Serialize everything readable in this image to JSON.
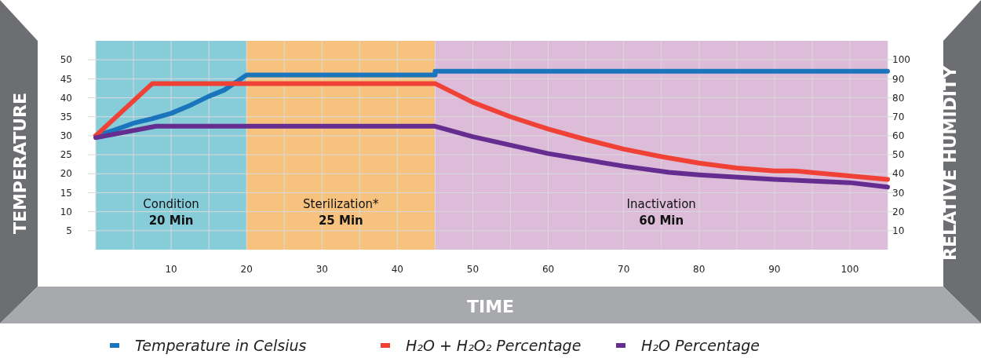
{
  "chart_data": {
    "type": "line",
    "xlabel": "TIME",
    "ylabel": "TEMPERATURE",
    "y2label": "RELATIVE HUMIDITY",
    "xlim": [
      0,
      105
    ],
    "xticks": [
      {
        "value": 0,
        "label": null
      },
      {
        "value": 5,
        "label": null
      },
      10,
      {
        "value": 15,
        "label": null
      },
      20,
      {
        "value": 25,
        "label": null
      },
      30,
      {
        "value": 35,
        "label": null
      },
      40,
      {
        "value": 45,
        "label": null
      },
      50,
      {
        "value": 55,
        "label": null
      },
      60,
      {
        "value": 65,
        "label": null
      },
      70,
      {
        "value": 75,
        "label": null
      },
      80,
      {
        "value": 85,
        "label": null
      },
      90,
      {
        "value": 95,
        "label": null
      },
      100,
      {
        "value": 105,
        "label": null
      }
    ],
    "ylim": [
      0,
      55
    ],
    "yticks": [
      5,
      10,
      15,
      20,
      25,
      30,
      35,
      40,
      45,
      50
    ],
    "y2lim": [
      0,
      110
    ],
    "y2ticks": [
      10,
      20,
      30,
      40,
      50,
      60,
      70,
      80,
      90,
      100
    ],
    "grid": true,
    "legend": "bottom",
    "line_style": "solid",
    "marker": "none",
    "bands": [
      {
        "axis": "x",
        "from": 0,
        "to": 20,
        "label": "Condition\n20 Min",
        "color": "#86cdd9"
      },
      {
        "axis": "x",
        "from": 20,
        "to": 45,
        "label": "Sterilization*\n25 Min",
        "color": "#f7c27e"
      },
      {
        "axis": "x",
        "from": 45,
        "to": 105,
        "label": "Inactivation\n60 Min",
        "color": "#dcbcd8"
      }
    ],
    "series": [
      {
        "name": "Temperature in Celsius",
        "color": "#1a75bc",
        "x": [
          0,
          2.5,
          5,
          7.5,
          10,
          12.5,
          15,
          17,
          18,
          20,
          45,
          45,
          105
        ],
        "values": [
          30,
          31.5,
          33.3,
          34.5,
          35.9,
          38,
          40.4,
          42,
          43.3,
          46,
          46,
          47,
          47
        ]
      },
      {
        "name": "H₂O + H₂O₂ Percentage",
        "color": "#ef4136",
        "axis": "y2",
        "x": [
          0,
          7.5,
          45,
          50,
          55,
          60,
          65,
          70,
          75,
          80,
          85,
          90,
          92.5,
          105
        ],
        "values": [
          60,
          87.5,
          87.5,
          77.6,
          70,
          63.5,
          58,
          53,
          49,
          45.6,
          43,
          41.5,
          41.5,
          37
        ]
      },
      {
        "name": "H₂O Percentage",
        "color": "#662d91",
        "axis": "y2",
        "x": [
          0,
          8,
          45,
          50,
          60,
          70,
          76,
          80,
          90,
          100,
          105
        ],
        "values": [
          59,
          65,
          65,
          59.5,
          50.6,
          44,
          40.7,
          39.4,
          37,
          35.3,
          33
        ]
      }
    ]
  }
}
